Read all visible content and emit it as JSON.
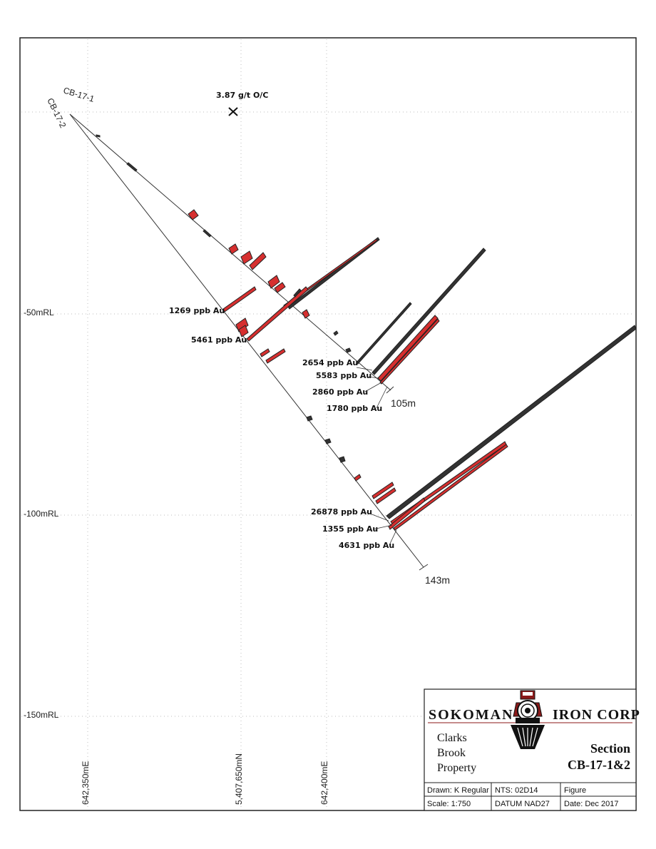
{
  "section": {
    "holes": [
      {
        "name": "CB-17-1",
        "end_depth": "105m"
      },
      {
        "name": "CB-17-2",
        "end_depth": "143m"
      }
    ],
    "outcrop_label": "3.87 g/t O/C",
    "rl_labels": [
      "-50mRL",
      "-100mRL",
      "-150mRL"
    ],
    "easting_labels": [
      "642,350mE",
      "5,407,650mN",
      "642,400mE"
    ],
    "assays": [
      "1269 ppb Au",
      "5461 ppb Au",
      "2654 ppb Au",
      "5583 ppb Au",
      "2860 ppb Au",
      "1780 ppb Au",
      "26878 ppb Au",
      "1355 ppb Au",
      "4631 ppb Au"
    ]
  },
  "title_block": {
    "company_left": "SOKOMAN",
    "company_right": "IRON CORP",
    "property_lines": [
      "Clarks",
      "Brook",
      "Property"
    ],
    "section_word": "Section",
    "section_name": "CB-17-1&2",
    "drawn": "Drawn: K Regular",
    "nts": "NTS: 02D14",
    "figure": "Figure",
    "scale": "Scale: 1:750",
    "datum": "DATUM NAD27",
    "date": "Date:  Dec 2017"
  },
  "colors": {
    "assay_bar": "#d62f2f",
    "black_bar": "#333333",
    "logo_red": "#8b1a1a",
    "grid": "#bdbdbd"
  }
}
